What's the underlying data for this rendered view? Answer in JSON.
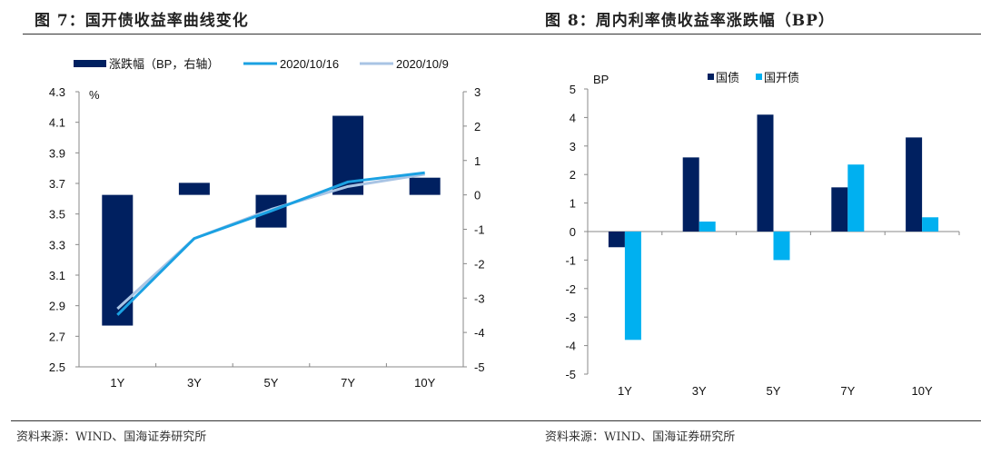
{
  "figures": [
    {
      "title": "图 7：国开债收益率曲线变化",
      "source": "资料来源：WIND、国海证券研究所"
    },
    {
      "title": "图 8：周内利率债收益率涨跌幅（BP）",
      "source": "资料来源：WIND、国海证券研究所"
    }
  ],
  "chart_data": [
    {
      "type": "bar",
      "title": "图 7：国开债收益率曲线变化",
      "categories": [
        "1Y",
        "3Y",
        "5Y",
        "7Y",
        "10Y"
      ],
      "left_axis": {
        "label": "%",
        "ylim": [
          2.5,
          4.3
        ],
        "ticks": [
          "4.3",
          "4.1",
          "3.9",
          "3.7",
          "3.5",
          "3.3",
          "3.1",
          "2.9",
          "2.7",
          "2.5"
        ]
      },
      "right_axis": {
        "ylim": [
          -5,
          3
        ],
        "ticks": [
          "3",
          "2",
          "1",
          "0",
          "-1",
          "-2",
          "-3",
          "-4",
          "-5"
        ]
      },
      "series": [
        {
          "name": "涨跌幅（BP，右轴）",
          "type": "bar",
          "axis": "right",
          "color": "#002060",
          "values": [
            -3.8,
            0.35,
            -0.95,
            2.3,
            0.5
          ]
        },
        {
          "name": "2020/10/16",
          "type": "line",
          "axis": "left",
          "color": "#1BA1E2",
          "values": [
            2.84,
            3.34,
            3.52,
            3.71,
            3.77
          ]
        },
        {
          "name": "2020/10/9",
          "type": "line",
          "axis": "left",
          "color": "#A9C4E4",
          "values": [
            2.88,
            3.34,
            3.53,
            3.68,
            3.76
          ]
        }
      ],
      "legend": [
        "涨跌幅（BP，右轴）",
        "2020/10/16",
        "2020/10/9"
      ],
      "legend_position": "top",
      "grid": false
    },
    {
      "type": "bar",
      "title": "图 8：周内利率债收益率涨跌幅（BP）",
      "ylabel": "BP",
      "categories": [
        "1Y",
        "3Y",
        "5Y",
        "7Y",
        "10Y"
      ],
      "ylim": [
        -5,
        5
      ],
      "ticks": [
        "5",
        "4",
        "3",
        "2",
        "1",
        "0",
        "-1",
        "-2",
        "-3",
        "-4",
        "-5"
      ],
      "series": [
        {
          "name": "国债",
          "color": "#002060",
          "values": [
            -0.55,
            2.6,
            4.1,
            1.55,
            3.3
          ]
        },
        {
          "name": "国开债",
          "color": "#00B0F0",
          "values": [
            -3.8,
            0.35,
            -1.0,
            2.35,
            0.5
          ]
        }
      ],
      "legend": [
        "国债",
        "国开债"
      ],
      "legend_position": "top",
      "grid": false
    }
  ]
}
